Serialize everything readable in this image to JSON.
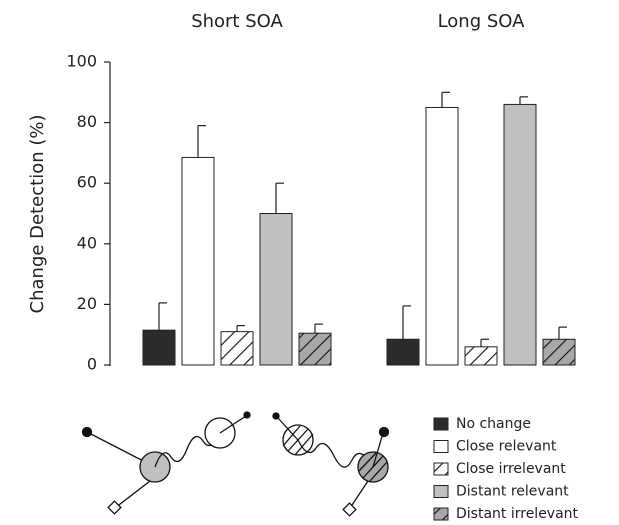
{
  "chart_data": {
    "type": "bar",
    "y_label": "Change Detection (%)",
    "categories": [
      "Short SOA",
      "Long SOA"
    ],
    "ylim": [
      0,
      100
    ],
    "yticks": [
      0,
      20,
      40,
      60,
      80,
      100
    ],
    "series": [
      {
        "name": "No change",
        "color": "#2b2b2b",
        "hatch": false,
        "values": [
          11.5,
          8.5
        ],
        "errors": [
          9,
          11
        ]
      },
      {
        "name": "Close relevant",
        "color": "#ffffff",
        "hatch": false,
        "values": [
          68.5,
          85
        ],
        "errors": [
          10.5,
          5
        ]
      },
      {
        "name": "Close irrelevant",
        "color": "#ffffff",
        "hatch": true,
        "values": [
          11,
          6
        ],
        "errors": [
          2,
          2.5
        ]
      },
      {
        "name": "Distant relevant",
        "color": "#c0c0c0",
        "hatch": false,
        "values": [
          50,
          86
        ],
        "errors": [
          10,
          2.5
        ]
      },
      {
        "name": "Distant irrelevant",
        "color": "#a8a8a8",
        "hatch": true,
        "values": [
          10.5,
          8.5
        ],
        "errors": [
          3,
          4
        ]
      }
    ]
  }
}
